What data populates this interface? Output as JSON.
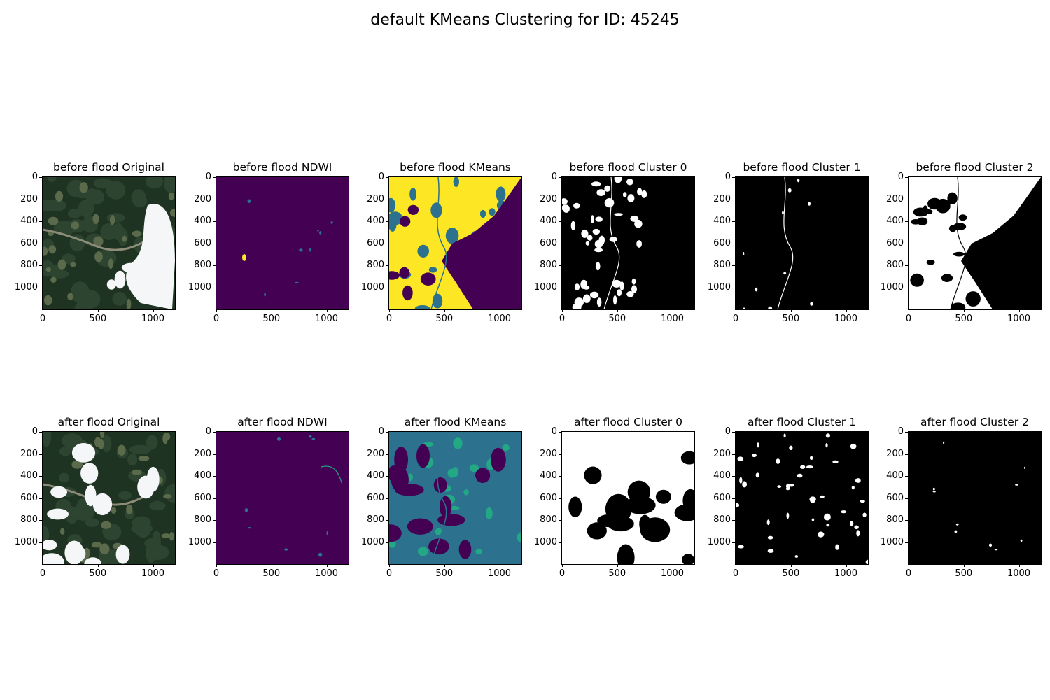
{
  "figure_title": "default KMeans Clustering for ID: 45245",
  "chart_data": {
    "type": "heatmap",
    "title": "default KMeans Clustering for ID: 45245",
    "xlim": [
      0,
      1200
    ],
    "ylim": [
      1200,
      0
    ],
    "x_ticks": [
      "0",
      "500",
      "1000"
    ],
    "x_tick_values": [
      0,
      500,
      1000
    ],
    "y_ticks": [
      "0",
      "200",
      "400",
      "600",
      "800",
      "1000"
    ],
    "y_tick_values": [
      0,
      200,
      400,
      600,
      800,
      1000
    ],
    "panels": [
      {
        "title": "before flood Original",
        "kind": "rgb",
        "scene": "before"
      },
      {
        "title": "before flood NDWI",
        "kind": "ndwi",
        "scene": "before"
      },
      {
        "title": "before flood KMeans",
        "kind": "kmeans",
        "scene": "before"
      },
      {
        "title": "before flood Cluster 0",
        "kind": "mask",
        "scene": "before",
        "cluster": 0
      },
      {
        "title": "before flood Cluster 1",
        "kind": "mask",
        "scene": "before",
        "cluster": 1
      },
      {
        "title": "before flood Cluster 2",
        "kind": "mask",
        "scene": "before",
        "cluster": 2
      },
      {
        "title": "after flood Original",
        "kind": "rgb",
        "scene": "after"
      },
      {
        "title": "after flood NDWI",
        "kind": "ndwi",
        "scene": "after"
      },
      {
        "title": "after flood KMeans",
        "kind": "kmeans",
        "scene": "after"
      },
      {
        "title": "after flood Cluster 0",
        "kind": "mask",
        "scene": "after",
        "cluster": 0
      },
      {
        "title": "after flood Cluster 1",
        "kind": "mask",
        "scene": "after",
        "cluster": 1
      },
      {
        "title": "after flood Cluster 2",
        "kind": "mask",
        "scene": "after",
        "cluster": 2
      }
    ]
  },
  "colors": {
    "viridis_low": "#440154",
    "viridis_mid": "#2c728e",
    "viridis_midhigh": "#22a884",
    "viridis_high": "#fde725",
    "forest": "#1f3322",
    "cloud": "#f4f6f8",
    "mask_on": "#ffffff",
    "mask_off": "#000000"
  }
}
